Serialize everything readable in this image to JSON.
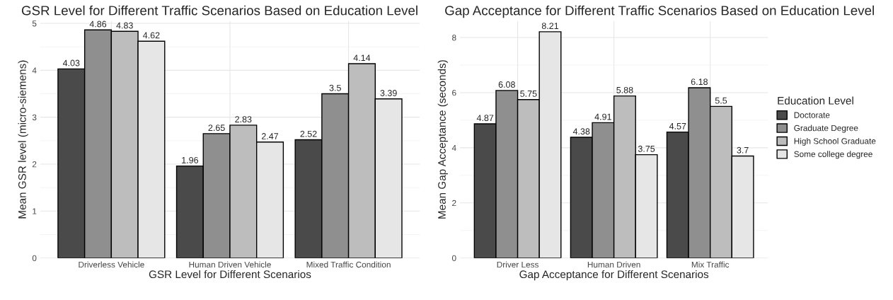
{
  "chart_data": [
    {
      "type": "bar",
      "title": "GSR Level for Different Traffic Scenarios Based on Education Level",
      "xlabel": "GSR Level for Different Scenarios",
      "ylabel": "Mean GSR level (micro-siemens)",
      "categories": [
        "Driverless Vehicle",
        "Human Driven Vehicle",
        "Mixed Traffic Condition"
      ],
      "series": [
        {
          "color": "#4a4a4a",
          "values": [
            4.03,
            1.96,
            2.52
          ]
        },
        {
          "color": "#8f8f8f",
          "values": [
            4.86,
            2.65,
            3.5
          ]
        },
        {
          "color": "#bdbdbd",
          "values": [
            4.83,
            2.83,
            4.14
          ]
        },
        {
          "color": "#e6e6e6",
          "values": [
            4.62,
            2.47,
            3.39
          ]
        }
      ],
      "ylim": [
        0,
        5.05
      ],
      "yticks": [
        0,
        1,
        2,
        3,
        4,
        5
      ],
      "grid": true,
      "data_labels": true
    },
    {
      "type": "bar",
      "title": "Gap Acceptance for Different Traffic Scenarios Based on Education Level",
      "xlabel": "Gap Acceptance for Different Scenarios",
      "ylabel": "Mean Gap Acceptance (seconds)",
      "legend_title": "Education Level",
      "categories": [
        "Driver Less",
        "Human Driven",
        "Mix Traffic"
      ],
      "series": [
        {
          "name": "Doctorate",
          "color": "#4a4a4a",
          "values": [
            4.87,
            4.38,
            4.57
          ]
        },
        {
          "name": "Graduate Degree",
          "color": "#8f8f8f",
          "values": [
            6.08,
            4.91,
            6.18
          ]
        },
        {
          "name": "High School Graduate",
          "color": "#bdbdbd",
          "values": [
            5.75,
            5.88,
            5.5
          ]
        },
        {
          "name": "Some college degree",
          "color": "#e6e6e6",
          "values": [
            8.21,
            3.75,
            3.7
          ]
        }
      ],
      "ylim": [
        0,
        8.6
      ],
      "yticks": [
        0,
        2,
        4,
        6,
        8
      ],
      "grid": true,
      "data_labels": true,
      "legend": "right"
    }
  ]
}
